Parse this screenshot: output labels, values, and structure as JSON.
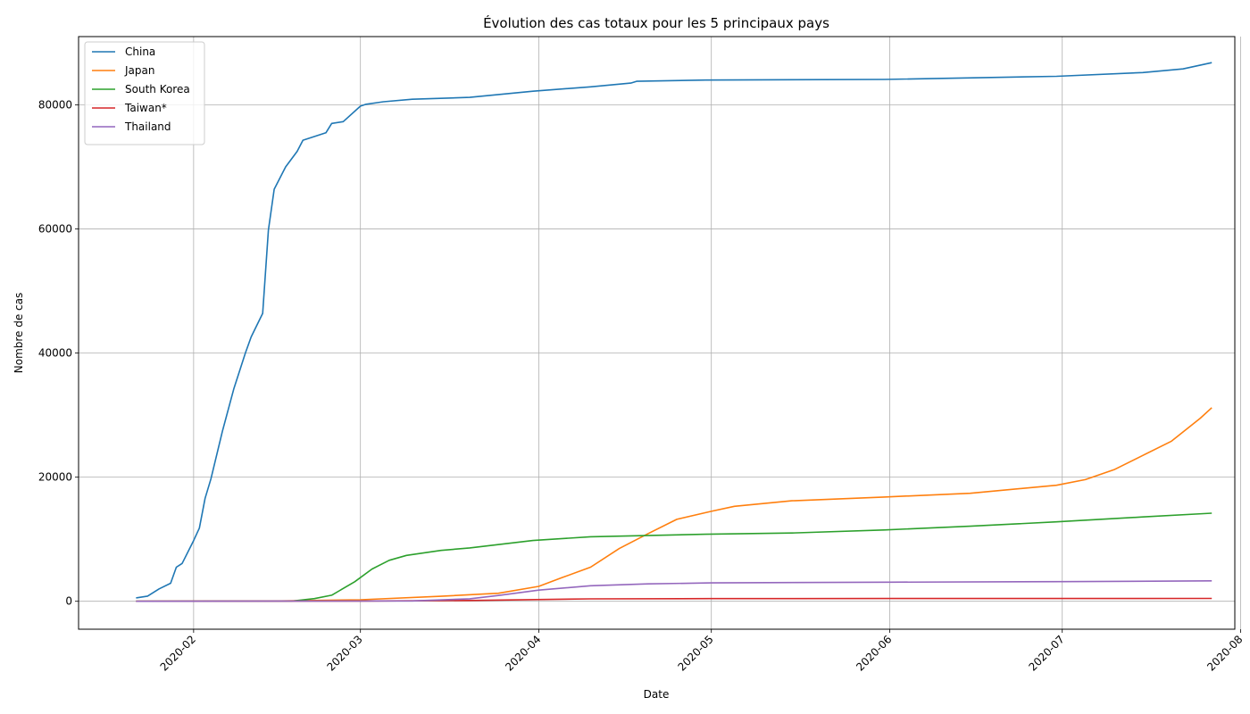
{
  "chart_data": {
    "type": "line",
    "title": "Évolution des cas totaux pour les 5 principaux pays",
    "xlabel": "Date",
    "ylabel": "Nombre de cas",
    "x_range": [
      "2020-01-12",
      "2020-07-31"
    ],
    "x_ticks": [
      "2020-02",
      "2020-03",
      "2020-04",
      "2020-05",
      "2020-06",
      "2020-07",
      "2020-08"
    ],
    "x_tick_dates": [
      "2020-02-01",
      "2020-03-01",
      "2020-04-01",
      "2020-05-01",
      "2020-06-01",
      "2020-07-01",
      "2020-08-01"
    ],
    "ylim": [
      -4500,
      91000
    ],
    "y_ticks": [
      0,
      20000,
      40000,
      60000,
      80000
    ],
    "grid": true,
    "legend_position": "top-left",
    "series": [
      {
        "name": "China",
        "color": "#1f77b4",
        "points": [
          [
            "2020-01-22",
            548
          ],
          [
            "2020-01-24",
            830
          ],
          [
            "2020-01-26",
            2000
          ],
          [
            "2020-01-28",
            2900
          ],
          [
            "2020-01-29",
            5500
          ],
          [
            "2020-01-30",
            6100
          ],
          [
            "2020-02-01",
            9800
          ],
          [
            "2020-02-02",
            11800
          ],
          [
            "2020-02-03",
            16600
          ],
          [
            "2020-02-04",
            19700
          ],
          [
            "2020-02-06",
            27400
          ],
          [
            "2020-02-08",
            34300
          ],
          [
            "2020-02-10",
            40000
          ],
          [
            "2020-02-11",
            42600
          ],
          [
            "2020-02-13",
            46400
          ],
          [
            "2020-02-14",
            59800
          ],
          [
            "2020-02-15",
            66400
          ],
          [
            "2020-02-17",
            70000
          ],
          [
            "2020-02-19",
            72500
          ],
          [
            "2020-02-20",
            74300
          ],
          [
            "2020-02-24",
            75500
          ],
          [
            "2020-02-25",
            77000
          ],
          [
            "2020-02-27",
            77300
          ],
          [
            "2020-03-01",
            79800
          ],
          [
            "2020-03-02",
            80100
          ],
          [
            "2020-03-05",
            80500
          ],
          [
            "2020-03-10",
            80900
          ],
          [
            "2020-03-20",
            81200
          ],
          [
            "2020-03-31",
            82200
          ],
          [
            "2020-04-10",
            82900
          ],
          [
            "2020-04-17",
            83500
          ],
          [
            "2020-04-18",
            83800
          ],
          [
            "2020-04-30",
            84000
          ],
          [
            "2020-05-31",
            84100
          ],
          [
            "2020-06-30",
            84600
          ],
          [
            "2020-07-15",
            85200
          ],
          [
            "2020-07-22",
            85800
          ],
          [
            "2020-07-27",
            86800
          ]
        ]
      },
      {
        "name": "Japan",
        "color": "#ff7f0e",
        "points": [
          [
            "2020-01-22",
            2
          ],
          [
            "2020-02-15",
            50
          ],
          [
            "2020-03-01",
            250
          ],
          [
            "2020-03-15",
            800
          ],
          [
            "2020-03-25",
            1300
          ],
          [
            "2020-04-01",
            2400
          ],
          [
            "2020-04-05",
            3800
          ],
          [
            "2020-04-10",
            5500
          ],
          [
            "2020-04-15",
            8500
          ],
          [
            "2020-04-20",
            10900
          ],
          [
            "2020-04-25",
            13200
          ],
          [
            "2020-05-01",
            14500
          ],
          [
            "2020-05-05",
            15300
          ],
          [
            "2020-05-15",
            16200
          ],
          [
            "2020-05-31",
            16800
          ],
          [
            "2020-06-15",
            17400
          ],
          [
            "2020-06-30",
            18700
          ],
          [
            "2020-07-05",
            19600
          ],
          [
            "2020-07-10",
            21200
          ],
          [
            "2020-07-15",
            23500
          ],
          [
            "2020-07-20",
            25800
          ],
          [
            "2020-07-25",
            29500
          ],
          [
            "2020-07-27",
            31200
          ]
        ]
      },
      {
        "name": "South Korea",
        "color": "#2ca02c",
        "points": [
          [
            "2020-01-22",
            1
          ],
          [
            "2020-02-18",
            31
          ],
          [
            "2020-02-22",
            430
          ],
          [
            "2020-02-25",
            980
          ],
          [
            "2020-02-29",
            3150
          ],
          [
            "2020-03-03",
            5200
          ],
          [
            "2020-03-06",
            6600
          ],
          [
            "2020-03-09",
            7400
          ],
          [
            "2020-03-15",
            8200
          ],
          [
            "2020-03-20",
            8600
          ],
          [
            "2020-03-31",
            9800
          ],
          [
            "2020-04-10",
            10400
          ],
          [
            "2020-04-30",
            10800
          ],
          [
            "2020-05-15",
            11000
          ],
          [
            "2020-05-31",
            11500
          ],
          [
            "2020-06-15",
            12100
          ],
          [
            "2020-06-30",
            12800
          ],
          [
            "2020-07-15",
            13600
          ],
          [
            "2020-07-27",
            14200
          ]
        ]
      },
      {
        "name": "Taiwan*",
        "color": "#d62728",
        "points": [
          [
            "2020-01-22",
            1
          ],
          [
            "2020-03-01",
            40
          ],
          [
            "2020-03-20",
            130
          ],
          [
            "2020-04-10",
            385
          ],
          [
            "2020-05-01",
            429
          ],
          [
            "2020-06-01",
            443
          ],
          [
            "2020-07-27",
            462
          ]
        ]
      },
      {
        "name": "Thailand",
        "color": "#9467bd",
        "points": [
          [
            "2020-01-22",
            2
          ],
          [
            "2020-03-10",
            53
          ],
          [
            "2020-03-20",
            400
          ],
          [
            "2020-03-25",
            930
          ],
          [
            "2020-04-01",
            1800
          ],
          [
            "2020-04-10",
            2500
          ],
          [
            "2020-04-20",
            2800
          ],
          [
            "2020-05-01",
            2960
          ],
          [
            "2020-06-01",
            3080
          ],
          [
            "2020-07-01",
            3170
          ],
          [
            "2020-07-27",
            3290
          ]
        ]
      }
    ]
  }
}
